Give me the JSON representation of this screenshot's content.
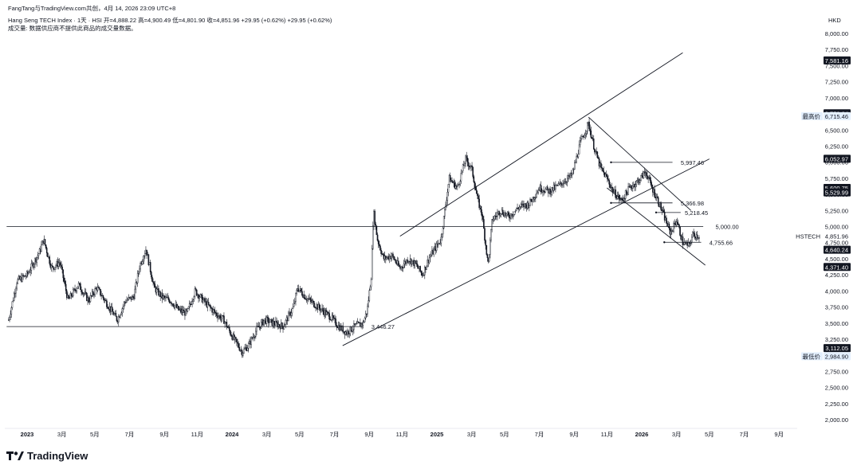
{
  "header": {
    "credit": "FangTang与TradingView.com共创，4月 14, 2026 23:09 UTC+8",
    "symbol_line": "Hang Seng TECH Index · 1天 · HSI  开=4,888.22  高=4,900.49  低=4,801.90  收=4,851.96  +29.95 (+0.62%)  +29.95 (+0.62%)",
    "volume_note": "成交量: 数据供应商不提供此商品的成交量数据。"
  },
  "chart_data": {
    "type": "candlestick",
    "currency": "HKD",
    "ylim": [
      1900,
      8150
    ],
    "y_ticks": [
      2000,
      2250,
      2500,
      2750,
      3000,
      3250,
      3500,
      3750,
      4000,
      4250,
      4500,
      4750,
      5000,
      5250,
      5500,
      5750,
      6000,
      6250,
      6500,
      6750,
      7000,
      7250,
      7500,
      7750,
      8000
    ],
    "y_tick_labels": [
      "2,000.00",
      "2,250.00",
      "2,500.00",
      "2,750.00",
      "3,000.00",
      "3,250.00",
      "3,500.00",
      "3,750.00",
      "4,000.00",
      "4,250.00",
      "4,500.00",
      "4,750.00",
      "5,000.00",
      "5,250.00",
      "5,500.00",
      "5,750.00",
      "6,000.00",
      "6,250.00",
      "6,500.00",
      "6,750.00",
      "7,000.00",
      "7,250.00",
      "7,500.00",
      "7,750.00",
      "8,000.00"
    ],
    "x_ticks": [
      {
        "label": "2023",
        "t": 2023.0,
        "bold": true
      },
      {
        "label": "3月",
        "t": 2023.17
      },
      {
        "label": "5月",
        "t": 2023.33
      },
      {
        "label": "7月",
        "t": 2023.5
      },
      {
        "label": "9月",
        "t": 2023.67
      },
      {
        "label": "11月",
        "t": 2023.83
      },
      {
        "label": "2024",
        "t": 2024.0,
        "bold": true
      },
      {
        "label": "3月",
        "t": 2024.17
      },
      {
        "label": "5月",
        "t": 2024.33
      },
      {
        "label": "7月",
        "t": 2024.5
      },
      {
        "label": "9月",
        "t": 2024.67
      },
      {
        "label": "11月",
        "t": 2024.83
      },
      {
        "label": "2025",
        "t": 2025.0,
        "bold": true
      },
      {
        "label": "3月",
        "t": 2025.17
      },
      {
        "label": "5月",
        "t": 2025.33
      },
      {
        "label": "7月",
        "t": 2025.5
      },
      {
        "label": "9月",
        "t": 2025.67
      },
      {
        "label": "11月",
        "t": 2025.83
      },
      {
        "label": "2026",
        "t": 2026.0,
        "bold": true
      },
      {
        "label": "3月",
        "t": 2026.17
      },
      {
        "label": "5月",
        "t": 2026.33
      },
      {
        "label": "7月",
        "t": 2026.5
      },
      {
        "label": "9月",
        "t": 2026.67
      }
    ],
    "series": [
      {
        "ticker": "HSTECH",
        "path": [
          [
            2022.91,
            3550
          ],
          [
            2022.95,
            4150
          ],
          [
            2023.0,
            4250
          ],
          [
            2023.06,
            4600
          ],
          [
            2023.08,
            4800
          ],
          [
            2023.12,
            4350
          ],
          [
            2023.16,
            4450
          ],
          [
            2023.2,
            3850
          ],
          [
            2023.25,
            4100
          ],
          [
            2023.3,
            3850
          ],
          [
            2023.34,
            4050
          ],
          [
            2023.4,
            3750
          ],
          [
            2023.44,
            3550
          ],
          [
            2023.48,
            3850
          ],
          [
            2023.52,
            3900
          ],
          [
            2023.55,
            4400
          ],
          [
            2023.58,
            4650
          ],
          [
            2023.62,
            4050
          ],
          [
            2023.66,
            3900
          ],
          [
            2023.7,
            3850
          ],
          [
            2023.74,
            3700
          ],
          [
            2023.78,
            3650
          ],
          [
            2023.82,
            4000
          ],
          [
            2023.86,
            3850
          ],
          [
            2023.92,
            3650
          ],
          [
            2023.96,
            3550
          ],
          [
            2024.0,
            3300
          ],
          [
            2024.05,
            3050
          ],
          [
            2024.08,
            3150
          ],
          [
            2024.12,
            3400
          ],
          [
            2024.16,
            3550
          ],
          [
            2024.2,
            3500
          ],
          [
            2024.25,
            3450
          ],
          [
            2024.3,
            3750
          ],
          [
            2024.32,
            4050
          ],
          [
            2024.36,
            3900
          ],
          [
            2024.4,
            3800
          ],
          [
            2024.44,
            3700
          ],
          [
            2024.48,
            3600
          ],
          [
            2024.52,
            3450
          ],
          [
            2024.56,
            3350
          ],
          [
            2024.6,
            3450
          ],
          [
            2024.64,
            3500
          ],
          [
            2024.66,
            3700
          ],
          [
            2024.68,
            4250
          ],
          [
            2024.69,
            5250
          ],
          [
            2024.71,
            4800
          ],
          [
            2024.74,
            4500
          ],
          [
            2024.78,
            4550
          ],
          [
            2024.82,
            4350
          ],
          [
            2024.86,
            4500
          ],
          [
            2024.9,
            4400
          ],
          [
            2024.93,
            4250
          ],
          [
            2024.96,
            4500
          ],
          [
            2024.98,
            4600
          ],
          [
            2025.02,
            4800
          ],
          [
            2025.06,
            5750
          ],
          [
            2025.1,
            5600
          ],
          [
            2025.14,
            6050
          ],
          [
            2025.17,
            5900
          ],
          [
            2025.2,
            5400
          ],
          [
            2025.22,
            5200
          ],
          [
            2025.25,
            4400
          ],
          [
            2025.27,
            5100
          ],
          [
            2025.31,
            5250
          ],
          [
            2025.35,
            5150
          ],
          [
            2025.4,
            5300
          ],
          [
            2025.45,
            5350
          ],
          [
            2025.5,
            5600
          ],
          [
            2025.55,
            5550
          ],
          [
            2025.6,
            5650
          ],
          [
            2025.66,
            5800
          ],
          [
            2025.7,
            6300
          ],
          [
            2025.74,
            6600
          ],
          [
            2025.77,
            6200
          ],
          [
            2025.8,
            5900
          ],
          [
            2025.83,
            5750
          ],
          [
            2025.86,
            5550
          ],
          [
            2025.9,
            5400
          ],
          [
            2025.94,
            5600
          ],
          [
            2025.98,
            5700
          ],
          [
            2026.02,
            5850
          ],
          [
            2026.05,
            5600
          ],
          [
            2026.08,
            5400
          ],
          [
            2026.11,
            5150
          ],
          [
            2026.14,
            4900
          ],
          [
            2026.17,
            5100
          ],
          [
            2026.2,
            4750
          ],
          [
            2026.23,
            4700
          ],
          [
            2026.25,
            4880
          ],
          [
            2026.28,
            4852
          ]
        ]
      }
    ],
    "trendlines": [
      {
        "points": [
          [
            2024.82,
            4850
          ],
          [
            2026.2,
            7700
          ]
        ]
      },
      {
        "points": [
          [
            2024.54,
            3150
          ],
          [
            2026.33,
            6050
          ]
        ]
      },
      {
        "points": [
          [
            2025.74,
            6700
          ],
          [
            2026.24,
            5250
          ]
        ]
      },
      {
        "points": [
          [
            2025.83,
            5600
          ],
          [
            2026.31,
            4400
          ]
        ]
      }
    ],
    "horizontal_lines": [
      {
        "value": 3446.27,
        "label": "3,446.27",
        "from": 2022.9,
        "to": 2024.64,
        "label_t": 2024.68
      },
      {
        "value": 5000.0,
        "label": "5,000.00",
        "from": 2022.9,
        "to": 2026.3,
        "label_t": 2026.36
      },
      {
        "value": 5997.46,
        "label": "5,997.46",
        "from": 2025.85,
        "to": 2026.15,
        "label_t": 2026.19
      },
      {
        "value": 5366.98,
        "label": "5,366.98",
        "from": 2025.85,
        "to": 2026.15,
        "label_t": 2026.19
      },
      {
        "value": 5218.45,
        "label": "5,218.45",
        "from": 2026.07,
        "to": 2026.19,
        "label_t": 2026.21
      },
      {
        "value": 4755.66,
        "label": "4,755.66",
        "from": 2026.11,
        "to": 2026.29,
        "label_t": 2026.33
      }
    ],
    "price_tags": [
      {
        "value": 7581.16,
        "label": "7,581.16",
        "style": "dark"
      },
      {
        "value": 6759.34,
        "label": "6,759.34",
        "style": "dark"
      },
      {
        "value": 6715.46,
        "label": "6,715.46",
        "style": "blue",
        "caption": "最高价"
      },
      {
        "value": 6052.97,
        "label": "6,052.97",
        "style": "dark"
      },
      {
        "value": 5600.75,
        "label": "5,600.75",
        "style": "dark"
      },
      {
        "value": 5529.99,
        "label": "5,529.99",
        "style": "dark"
      },
      {
        "value": 4851.96,
        "label": "4,851.96",
        "style": "plain",
        "caption": "HSTECH"
      },
      {
        "value": 4640.24,
        "label": "4,640.24",
        "style": "dark"
      },
      {
        "value": 4371.4,
        "label": "4,371.40",
        "style": "dark"
      },
      {
        "value": 3112.05,
        "label": "3,112.05",
        "style": "dark"
      },
      {
        "value": 2984.9,
        "label": "2,984.90",
        "style": "blue",
        "caption": "最低价"
      }
    ],
    "colors": {
      "candle": "#131722",
      "line": "#131722",
      "tag_dark": "#131722",
      "tag_blue": "#e3effd"
    }
  },
  "branding": {
    "logo_text": "TradingView"
  }
}
